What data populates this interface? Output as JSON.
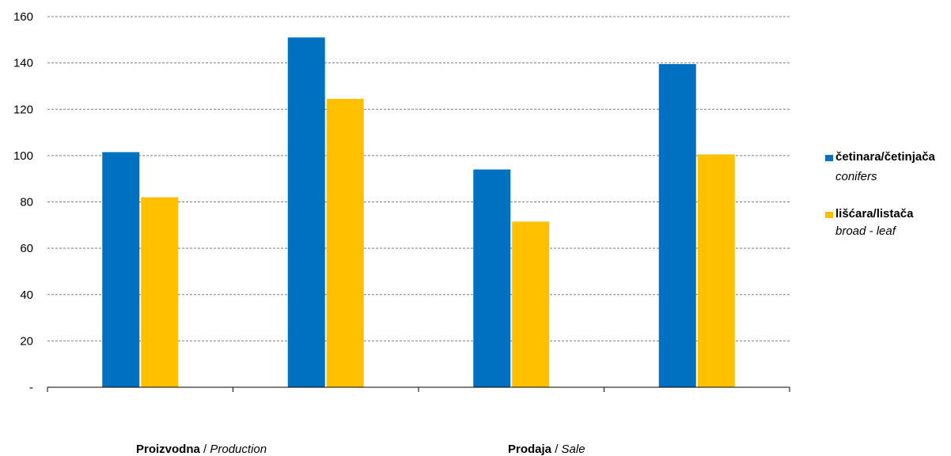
{
  "chart_data": {
    "type": "bar",
    "categories": [
      "Proizvodna / Production (1)",
      "Proizvodna / Production (2)",
      "Prodaja / Sale (1)",
      "Prodaja / Sale (2)"
    ],
    "series": [
      {
        "name": "četinara/četinjača",
        "subtitle": "conifers",
        "color": "#0070C0",
        "values": [
          101.5,
          151,
          94,
          139.5
        ]
      },
      {
        "name": "lišćara/listača",
        "subtitle": "broad - leaf",
        "color": "#FFC000",
        "values": [
          82,
          124.5,
          71.5,
          100.5
        ]
      }
    ],
    "y_ticks": [
      "-",
      "20",
      "40",
      "60",
      "80",
      "100",
      "120",
      "140",
      "160"
    ],
    "ylim": [
      0,
      160
    ],
    "grid": true,
    "grid_style": "dashed",
    "legend_position": "right",
    "group_labels": [
      {
        "bold": "Proizvodna",
        "sep": " / ",
        "italic": "Production"
      },
      {
        "bold": "Prodaja",
        "sep": " / ",
        "italic": "Sale"
      }
    ]
  }
}
